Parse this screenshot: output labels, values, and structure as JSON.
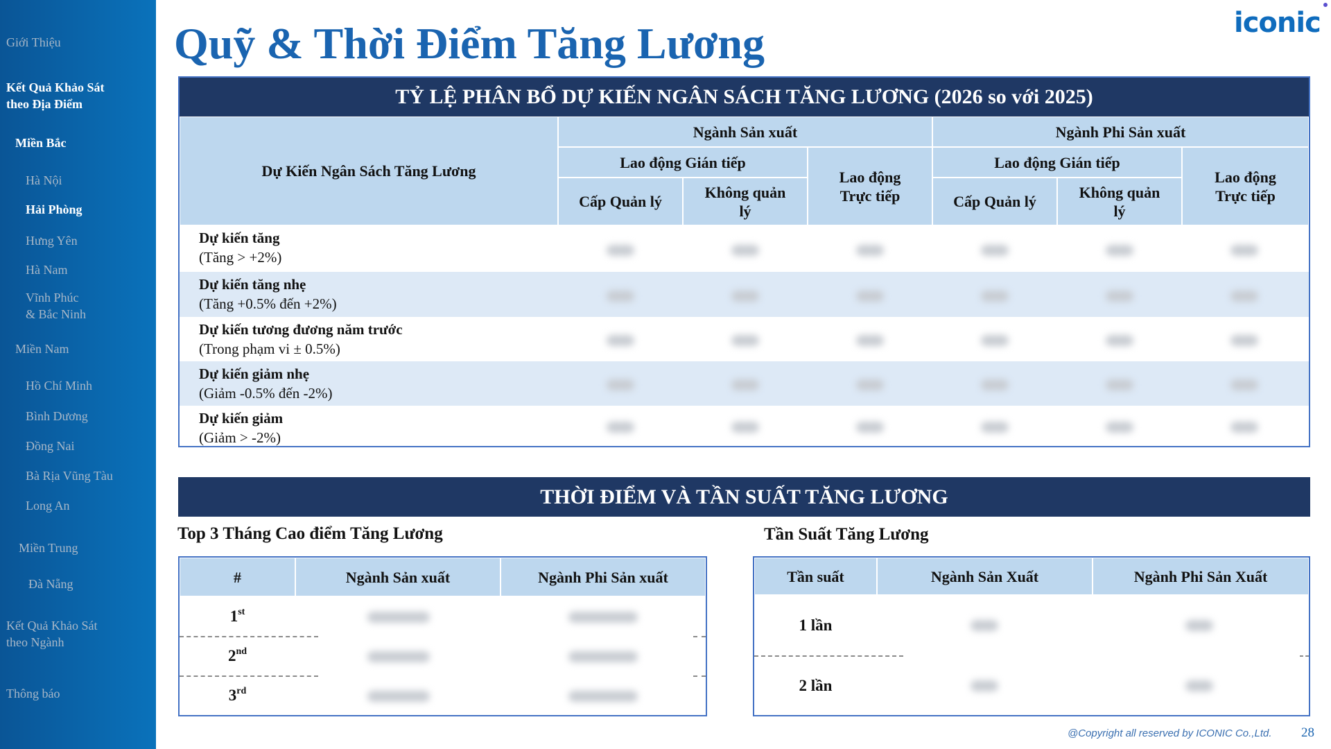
{
  "sidebar": {
    "items": [
      "Giới Thiệu",
      "Kết Quả Khảo Sát\ntheo Địa Điểm",
      "Miền Bắc",
      "Hà Nội",
      "Hải Phòng",
      "Hưng Yên",
      "Hà Nam",
      "Vĩnh Phúc\n& Bắc Ninh",
      "Miền Nam",
      "Hồ Chí Minh",
      "Bình Dương",
      "Đồng Nai",
      "Bà Rịa Vũng Tàu",
      "Long An",
      "Miền Trung",
      "Đà Nẵng",
      "Kết Quả Khảo Sát\ntheo Ngành",
      "Thông báo"
    ],
    "active": [
      "Kết Quả Khảo Sát theo Địa Điểm",
      "Miền Bắc",
      "Hải Phòng"
    ]
  },
  "title": "Quỹ & Thời Điểm Tăng Lương",
  "logo": "iconic",
  "budget_table": {
    "banner": "TỶ LỆ PHÂN BỔ DỰ KIẾN NGÂN SÁCH TĂNG LƯƠNG (2026 so với 2025)",
    "row_header": "Dự Kiến Ngân Sách Tăng Lương",
    "group_mfg": "Ngành Sản xuất",
    "group_nonmfg": "Ngành Phi Sản xuất",
    "indirect": "Lao động Gián tiếp",
    "direct": "Lao động Trực tiếp",
    "manager": "Cấp Quản lý",
    "non_manager": "Không quản lý",
    "rows": [
      {
        "label": "Dự kiến tăng",
        "range": "(Tăng > +2%)"
      },
      {
        "label": "Dự kiến tăng nhẹ",
        "range": "(Tăng +0.5% đến +2%)"
      },
      {
        "label": "Dự kiến tương đương năm trước",
        "range": "(Trong phạm vi ± 0.5%)"
      },
      {
        "label": "Dự kiến giảm nhẹ",
        "range": "(Giảm -0.5% đến -2%)"
      },
      {
        "label": "Dự kiến giảm",
        "range": "(Giảm > -2%)"
      }
    ]
  },
  "timing": {
    "banner": "THỜI ĐIỂM VÀ TẦN SUẤT TĂNG LƯƠNG",
    "top3": {
      "title": "Top 3 Tháng Cao điểm Tăng Lương",
      "headers": [
        "#",
        "Ngành Sản xuất",
        "Ngành Phi Sản xuất"
      ],
      "ranks": [
        [
          "1",
          "st"
        ],
        [
          "2",
          "nd"
        ],
        [
          "3",
          "rd"
        ]
      ]
    },
    "freq": {
      "title": "Tần Suất Tăng Lương",
      "headers": [
        "Tần suất",
        "Ngành Sản Xuất",
        "Ngành Phi Sản Xuất"
      ],
      "rows": [
        "1 lần",
        "2 lần"
      ]
    }
  },
  "footer": {
    "copyright": "@Copyright all reserved by ICONIC Co.,Ltd.",
    "page": "28"
  },
  "colors": {
    "banner": "#1f3864",
    "header": "#bdd7ee",
    "accent": "#1a64b0",
    "frame": "#4472c4"
  }
}
